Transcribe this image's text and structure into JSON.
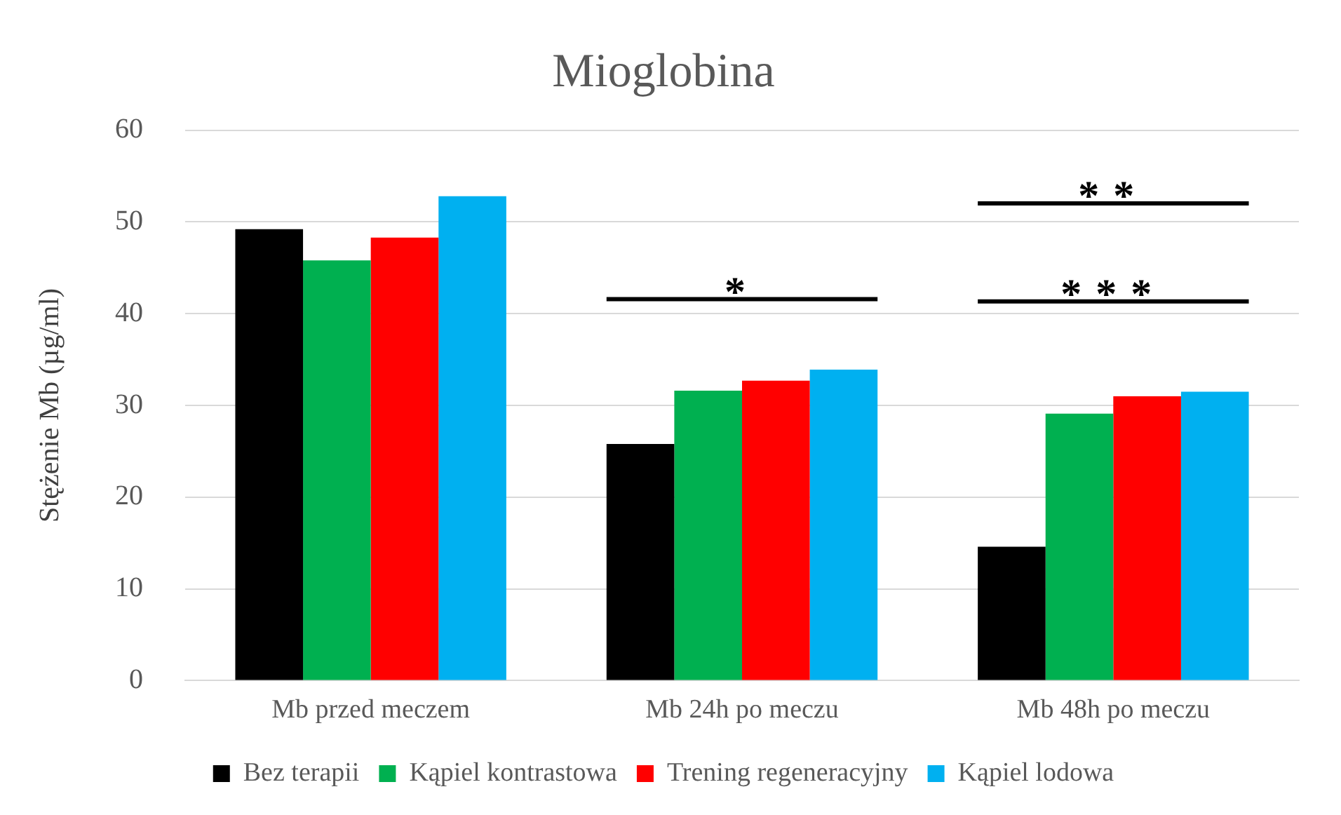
{
  "chart_data": {
    "type": "bar",
    "title": "Mioglobina",
    "ylabel": "Stężenie Mb (µg/ml)",
    "categories": [
      "Mb przed meczem",
      "Mb 24h po meczu",
      "Mb 48h po meczu"
    ],
    "series": [
      {
        "name": "Bez terapii",
        "color": "#000000",
        "values": [
          49.2,
          25.8,
          14.6
        ]
      },
      {
        "name": "Kąpiel kontrastowa",
        "color": "#00b050",
        "values": [
          45.8,
          31.6,
          29.1
        ]
      },
      {
        "name": "Trening regeneracyjny",
        "color": "#ff0000",
        "values": [
          48.3,
          32.7,
          31.0
        ]
      },
      {
        "name": "Kąpiel lodowa",
        "color": "#00b0f0",
        "values": [
          52.8,
          33.9,
          31.5
        ]
      }
    ],
    "ylim": [
      0,
      60
    ],
    "yticks": [
      0,
      10,
      20,
      30,
      40,
      50,
      60
    ],
    "grid": "y",
    "legend": "bottom",
    "annotations": [
      "*",
      "**",
      "***"
    ]
  }
}
